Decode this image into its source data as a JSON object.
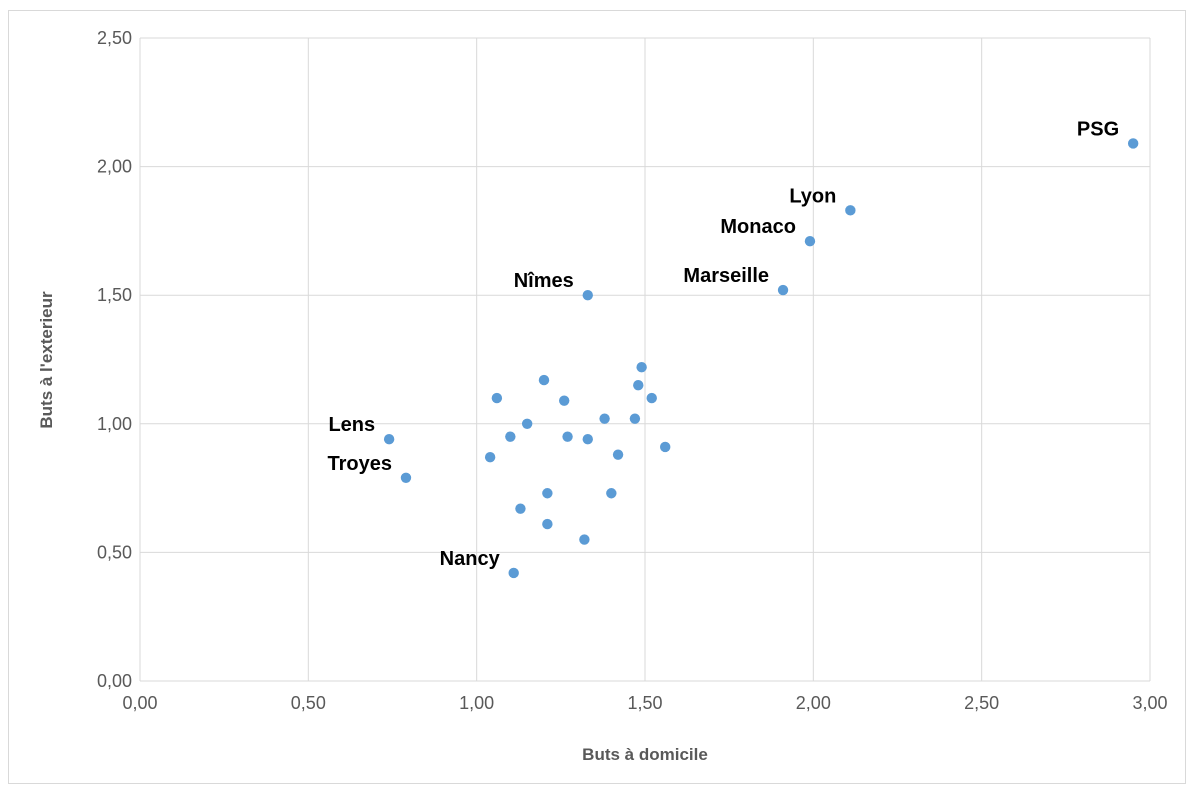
{
  "chart_data": {
    "type": "scatter",
    "title": "",
    "xlabel": "Buts à domicile",
    "ylabel": "Buts à l'exterieur",
    "xlim": [
      0,
      3
    ],
    "ylim": [
      0,
      2.5
    ],
    "xticks": [
      "0,00",
      "0,50",
      "1,00",
      "1,50",
      "2,00",
      "2,50",
      "3,00"
    ],
    "yticks": [
      "0,00",
      "0,50",
      "1,00",
      "1,50",
      "2,00",
      "2,50"
    ],
    "grid": true,
    "color": "#5b9bd5",
    "points": [
      {
        "x": 2.95,
        "y": 2.09,
        "label": "PSG"
      },
      {
        "x": 2.11,
        "y": 1.83,
        "label": "Lyon"
      },
      {
        "x": 1.99,
        "y": 1.71,
        "label": "Monaco"
      },
      {
        "x": 1.91,
        "y": 1.52,
        "label": "Marseille"
      },
      {
        "x": 1.33,
        "y": 1.5,
        "label": "Nîmes"
      },
      {
        "x": 0.74,
        "y": 0.94,
        "label": "Lens"
      },
      {
        "x": 0.79,
        "y": 0.79,
        "label": "Troyes"
      },
      {
        "x": 1.11,
        "y": 0.42,
        "label": "Nancy"
      },
      {
        "x": 1.49,
        "y": 1.22
      },
      {
        "x": 1.2,
        "y": 1.17
      },
      {
        "x": 1.48,
        "y": 1.15
      },
      {
        "x": 1.06,
        "y": 1.1
      },
      {
        "x": 1.52,
        "y": 1.1
      },
      {
        "x": 1.26,
        "y": 1.09
      },
      {
        "x": 1.38,
        "y": 1.02
      },
      {
        "x": 1.47,
        "y": 1.02
      },
      {
        "x": 1.15,
        "y": 1.0
      },
      {
        "x": 1.1,
        "y": 0.95
      },
      {
        "x": 1.27,
        "y": 0.95
      },
      {
        "x": 1.33,
        "y": 0.94
      },
      {
        "x": 1.56,
        "y": 0.91
      },
      {
        "x": 1.04,
        "y": 0.87
      },
      {
        "x": 1.42,
        "y": 0.88
      },
      {
        "x": 1.21,
        "y": 0.73
      },
      {
        "x": 1.4,
        "y": 0.73
      },
      {
        "x": 1.13,
        "y": 0.67
      },
      {
        "x": 1.21,
        "y": 0.61
      },
      {
        "x": 1.32,
        "y": 0.55
      }
    ]
  }
}
